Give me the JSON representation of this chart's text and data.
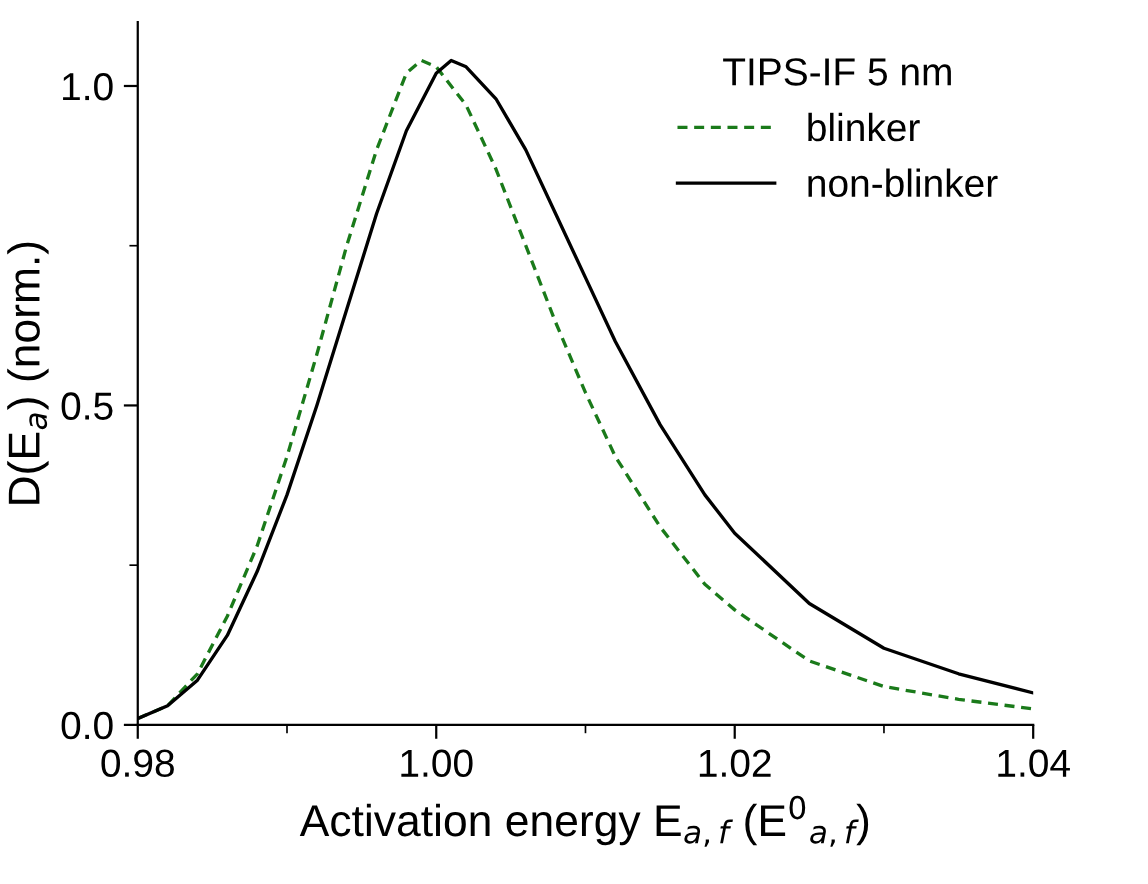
{
  "chart_data": {
    "type": "line",
    "xlabel": "Activation energy E$_{a,f}$ (E$^{0}$$_{a,f}$)",
    "ylabel": "D(E$_{a}$) (norm.)",
    "legend_title": "TIPS-IF 5 nm",
    "legend": "top right",
    "grid": false,
    "xlim": [
      0.98,
      1.04
    ],
    "xticks": [
      {
        "value": 0.98,
        "label": "0.98"
      },
      {
        "value": 1.0,
        "label": "1.00"
      },
      {
        "value": 1.02,
        "label": "1.02"
      },
      {
        "value": 1.04,
        "label": "1.04"
      }
    ],
    "ylim": [
      0,
      1.1
    ],
    "yticks": [
      {
        "value": 0,
        "label": "0.0"
      },
      {
        "value": 0.5,
        "label": "0.5"
      },
      {
        "value": 1.0,
        "label": "1.0"
      }
    ],
    "series": [
      {
        "name": "blinker",
        "color": "#1a7a1a",
        "line_style": "dashed",
        "x": [
          0.98,
          0.982,
          0.984,
          0.986,
          0.988,
          0.99,
          0.992,
          0.994,
          0.996,
          0.998,
          0.999,
          1.0,
          1.002,
          1.004,
          1.006,
          1.008,
          1.01,
          1.012,
          1.015,
          1.018,
          1.02,
          1.025,
          1.03,
          1.035,
          1.04
        ],
        "values": [
          0.01,
          0.03,
          0.08,
          0.17,
          0.28,
          0.42,
          0.58,
          0.75,
          0.9,
          1.02,
          1.04,
          1.03,
          0.97,
          0.87,
          0.75,
          0.63,
          0.52,
          0.42,
          0.31,
          0.22,
          0.18,
          0.1,
          0.06,
          0.04,
          0.025
        ]
      },
      {
        "name": "non-blinker",
        "color": "#000000",
        "line_style": "solid",
        "x": [
          0.98,
          0.982,
          0.984,
          0.986,
          0.988,
          0.99,
          0.992,
          0.994,
          0.996,
          0.998,
          1.0,
          1.001,
          1.002,
          1.004,
          1.006,
          1.008,
          1.01,
          1.012,
          1.015,
          1.018,
          1.02,
          1.025,
          1.03,
          1.035,
          1.04
        ],
        "values": [
          0.01,
          0.03,
          0.07,
          0.14,
          0.24,
          0.36,
          0.5,
          0.65,
          0.8,
          0.93,
          1.02,
          1.04,
          1.03,
          0.98,
          0.9,
          0.8,
          0.7,
          0.6,
          0.47,
          0.36,
          0.3,
          0.19,
          0.12,
          0.08,
          0.05
        ]
      }
    ]
  }
}
